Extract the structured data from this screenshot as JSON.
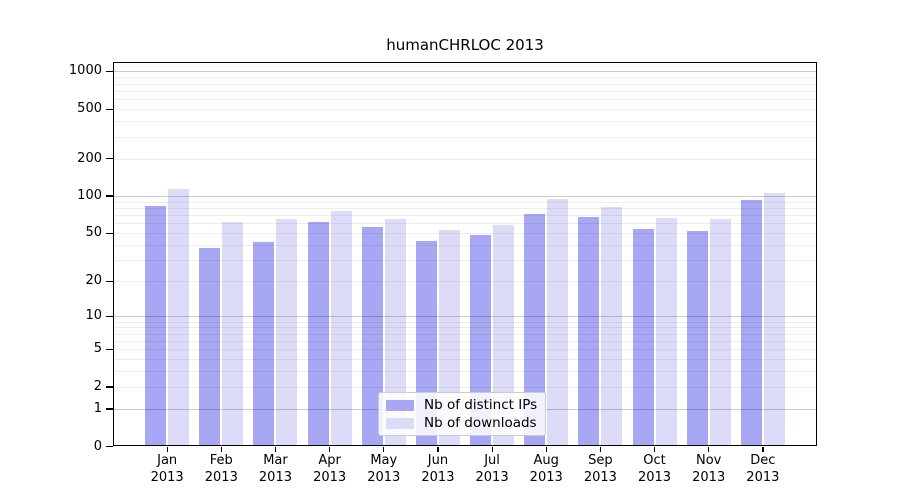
{
  "title": "humanCHRLOC 2013",
  "chart_data": {
    "type": "bar",
    "title": "humanCHRLOC 2013",
    "categories": [
      "Jan 2013",
      "Feb 2013",
      "Mar 2013",
      "Apr 2013",
      "May 2013",
      "Jun 2013",
      "Jul 2013",
      "Aug 2013",
      "Sep 2013",
      "Oct 2013",
      "Nov 2013",
      "Dec 2013"
    ],
    "series": [
      {
        "name": "Nb of distinct IPs",
        "color": "#a7a7f4",
        "values": [
          83,
          38,
          42,
          61,
          56,
          43,
          48,
          72,
          67,
          54,
          52,
          92
        ]
      },
      {
        "name": "Nb of downloads",
        "color": "#dcdcf9",
        "values": [
          113,
          61,
          65,
          75,
          65,
          53,
          58,
          94,
          82,
          66,
          65,
          106
        ]
      }
    ],
    "xlabel": "",
    "ylabel": "",
    "y_scale": "log10(1+value)",
    "y_ticks": [
      0,
      1,
      2,
      5,
      10,
      20,
      50,
      100,
      200,
      500,
      1000
    ],
    "ylim": [
      0,
      1190
    ],
    "grid": true,
    "grid_minor": true,
    "legend_position": "bottom-center",
    "legend_entries": [
      "Nb of distinct IPs",
      "Nb of downloads"
    ]
  },
  "colors": {
    "background": "#ffffff",
    "axis": "#000000",
    "bar_distinct_ips": "#a7a7f4",
    "bar_downloads": "#dcdcf9",
    "grid_major": "#cccccc",
    "grid_minor": "#ececec",
    "legend_border": "#cccccc"
  }
}
